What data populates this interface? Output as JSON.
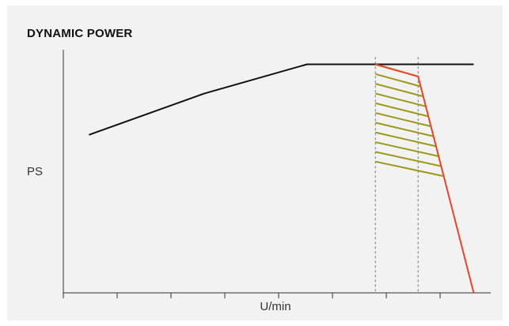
{
  "chart_data": {
    "type": "line",
    "title": "DYNAMIC POWER",
    "xlabel": "U/min",
    "ylabel": "PS",
    "xlim": [
      0,
      10
    ],
    "ylim": [
      0,
      10
    ],
    "grid": false,
    "colors": {
      "base_curve": "#111111",
      "drop_curve": "#ee4422",
      "hatch": "#9a9a18",
      "guide": "#777777",
      "axis": "#333333"
    },
    "series": [
      {
        "key": "base",
        "x": [
          0.6,
          3.3,
          5.7,
          9.6
        ],
        "y": [
          6.5,
          8.2,
          9.4,
          9.4
        ]
      },
      {
        "key": "drop",
        "x": [
          7.3,
          8.3,
          9.6
        ],
        "y": [
          9.4,
          8.9,
          0.0
        ]
      }
    ],
    "hatched_region": {
      "x_range": [
        7.3,
        8.3
      ],
      "top_y": [
        9.4,
        8.9
      ],
      "bottom_y": [
        5.4,
        4.8
      ],
      "line_count": 11
    },
    "guide_lines_x": [
      7.3,
      8.3
    ],
    "tick_count": 9
  }
}
